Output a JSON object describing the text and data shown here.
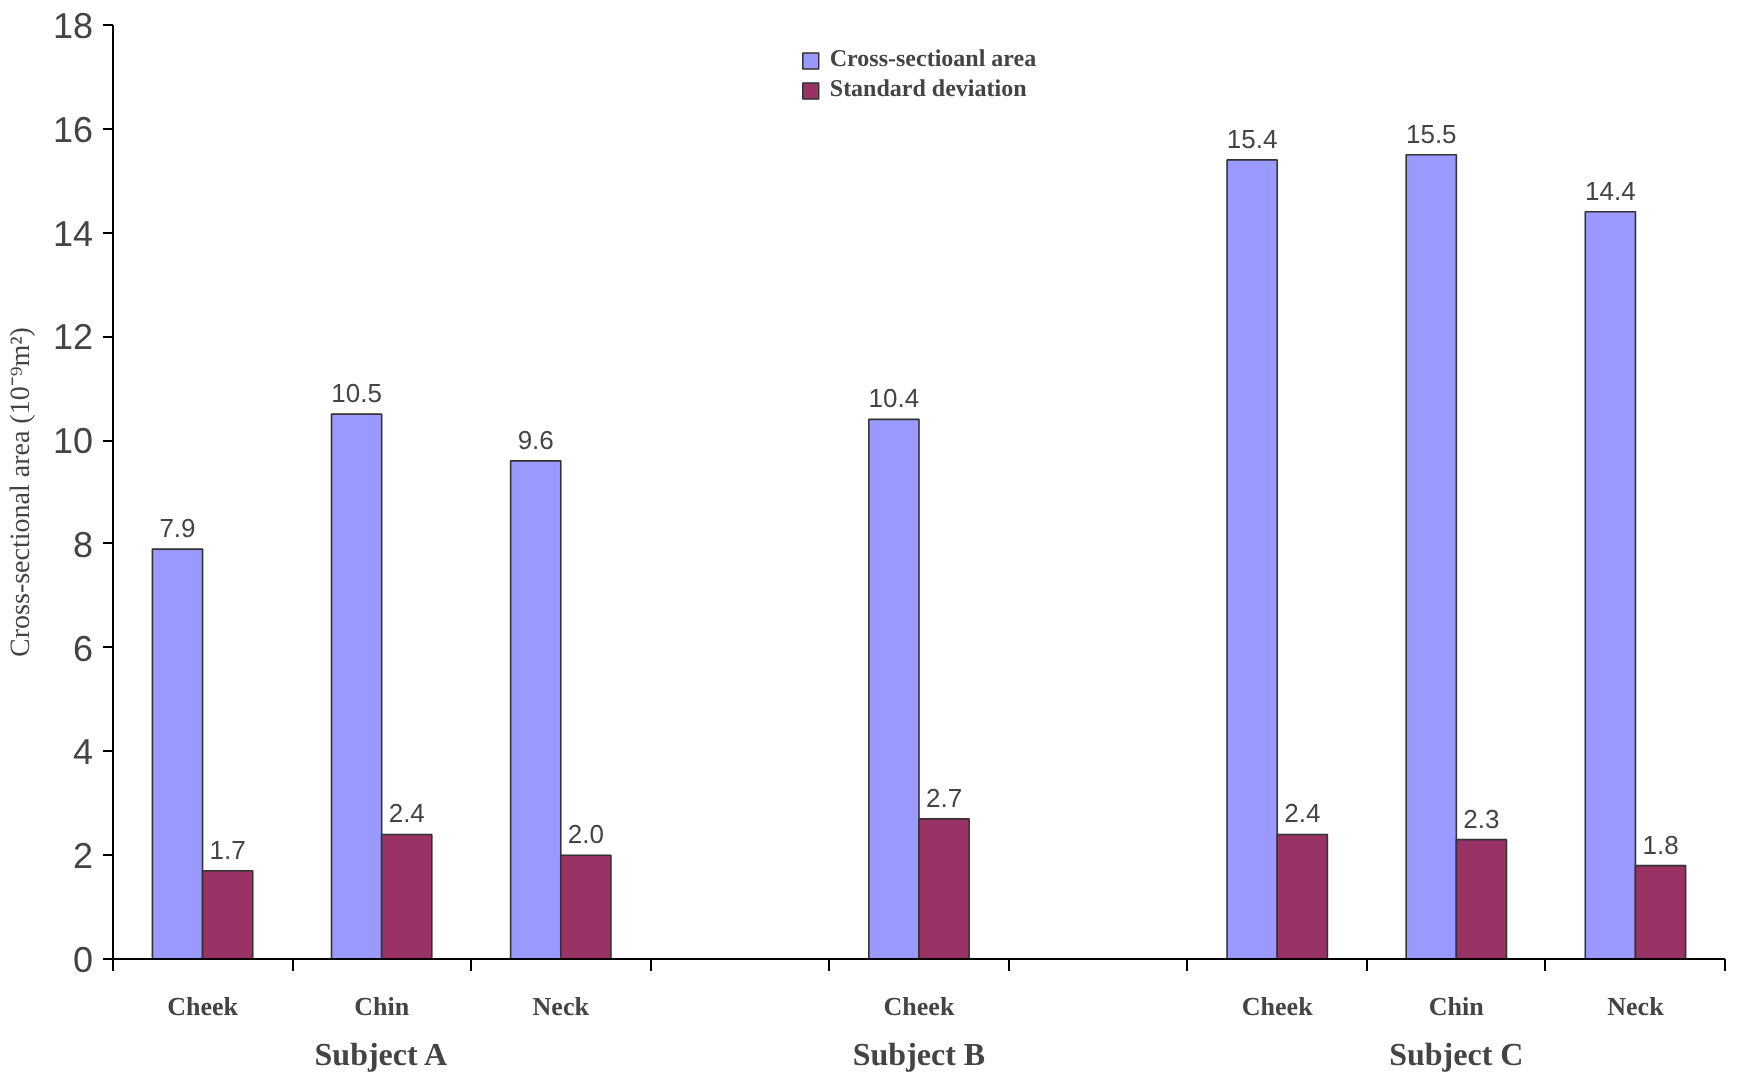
{
  "chart_data": {
    "type": "bar",
    "ylabel": "Cross-sectional area (10⁻⁹m²)",
    "categories": [
      "Cheek",
      "Chin",
      "Neck",
      null,
      "Cheek",
      null,
      "Cheek",
      "Chin",
      "Neck"
    ],
    "series": [
      {
        "name": "Cross-sectioanl area",
        "color": "#9999ff",
        "values": [
          7.9,
          10.5,
          9.6,
          null,
          10.4,
          null,
          15.4,
          15.5,
          14.4
        ]
      },
      {
        "name": "Standard deviation",
        "color": "#993366",
        "values": [
          1.7,
          2.4,
          2.0,
          null,
          2.7,
          null,
          2.4,
          2.3,
          1.8
        ]
      }
    ],
    "value_labels": [
      [
        "7.9",
        "10.5",
        "9.6",
        null,
        "10.4",
        null,
        "15.4",
        "15.5",
        "14.4"
      ],
      [
        "1.7",
        "2.4",
        "2.0",
        null,
        "2.7",
        null,
        "2.4",
        "2.3",
        "1.8"
      ]
    ],
    "annotations": [
      "Subject A",
      "Subject B",
      "Subject C"
    ],
    "ylim": [
      0,
      18
    ],
    "yticks": [
      0,
      2,
      4,
      6,
      8,
      10,
      12,
      14,
      16,
      18
    ],
    "grid": false,
    "legend": "top"
  }
}
